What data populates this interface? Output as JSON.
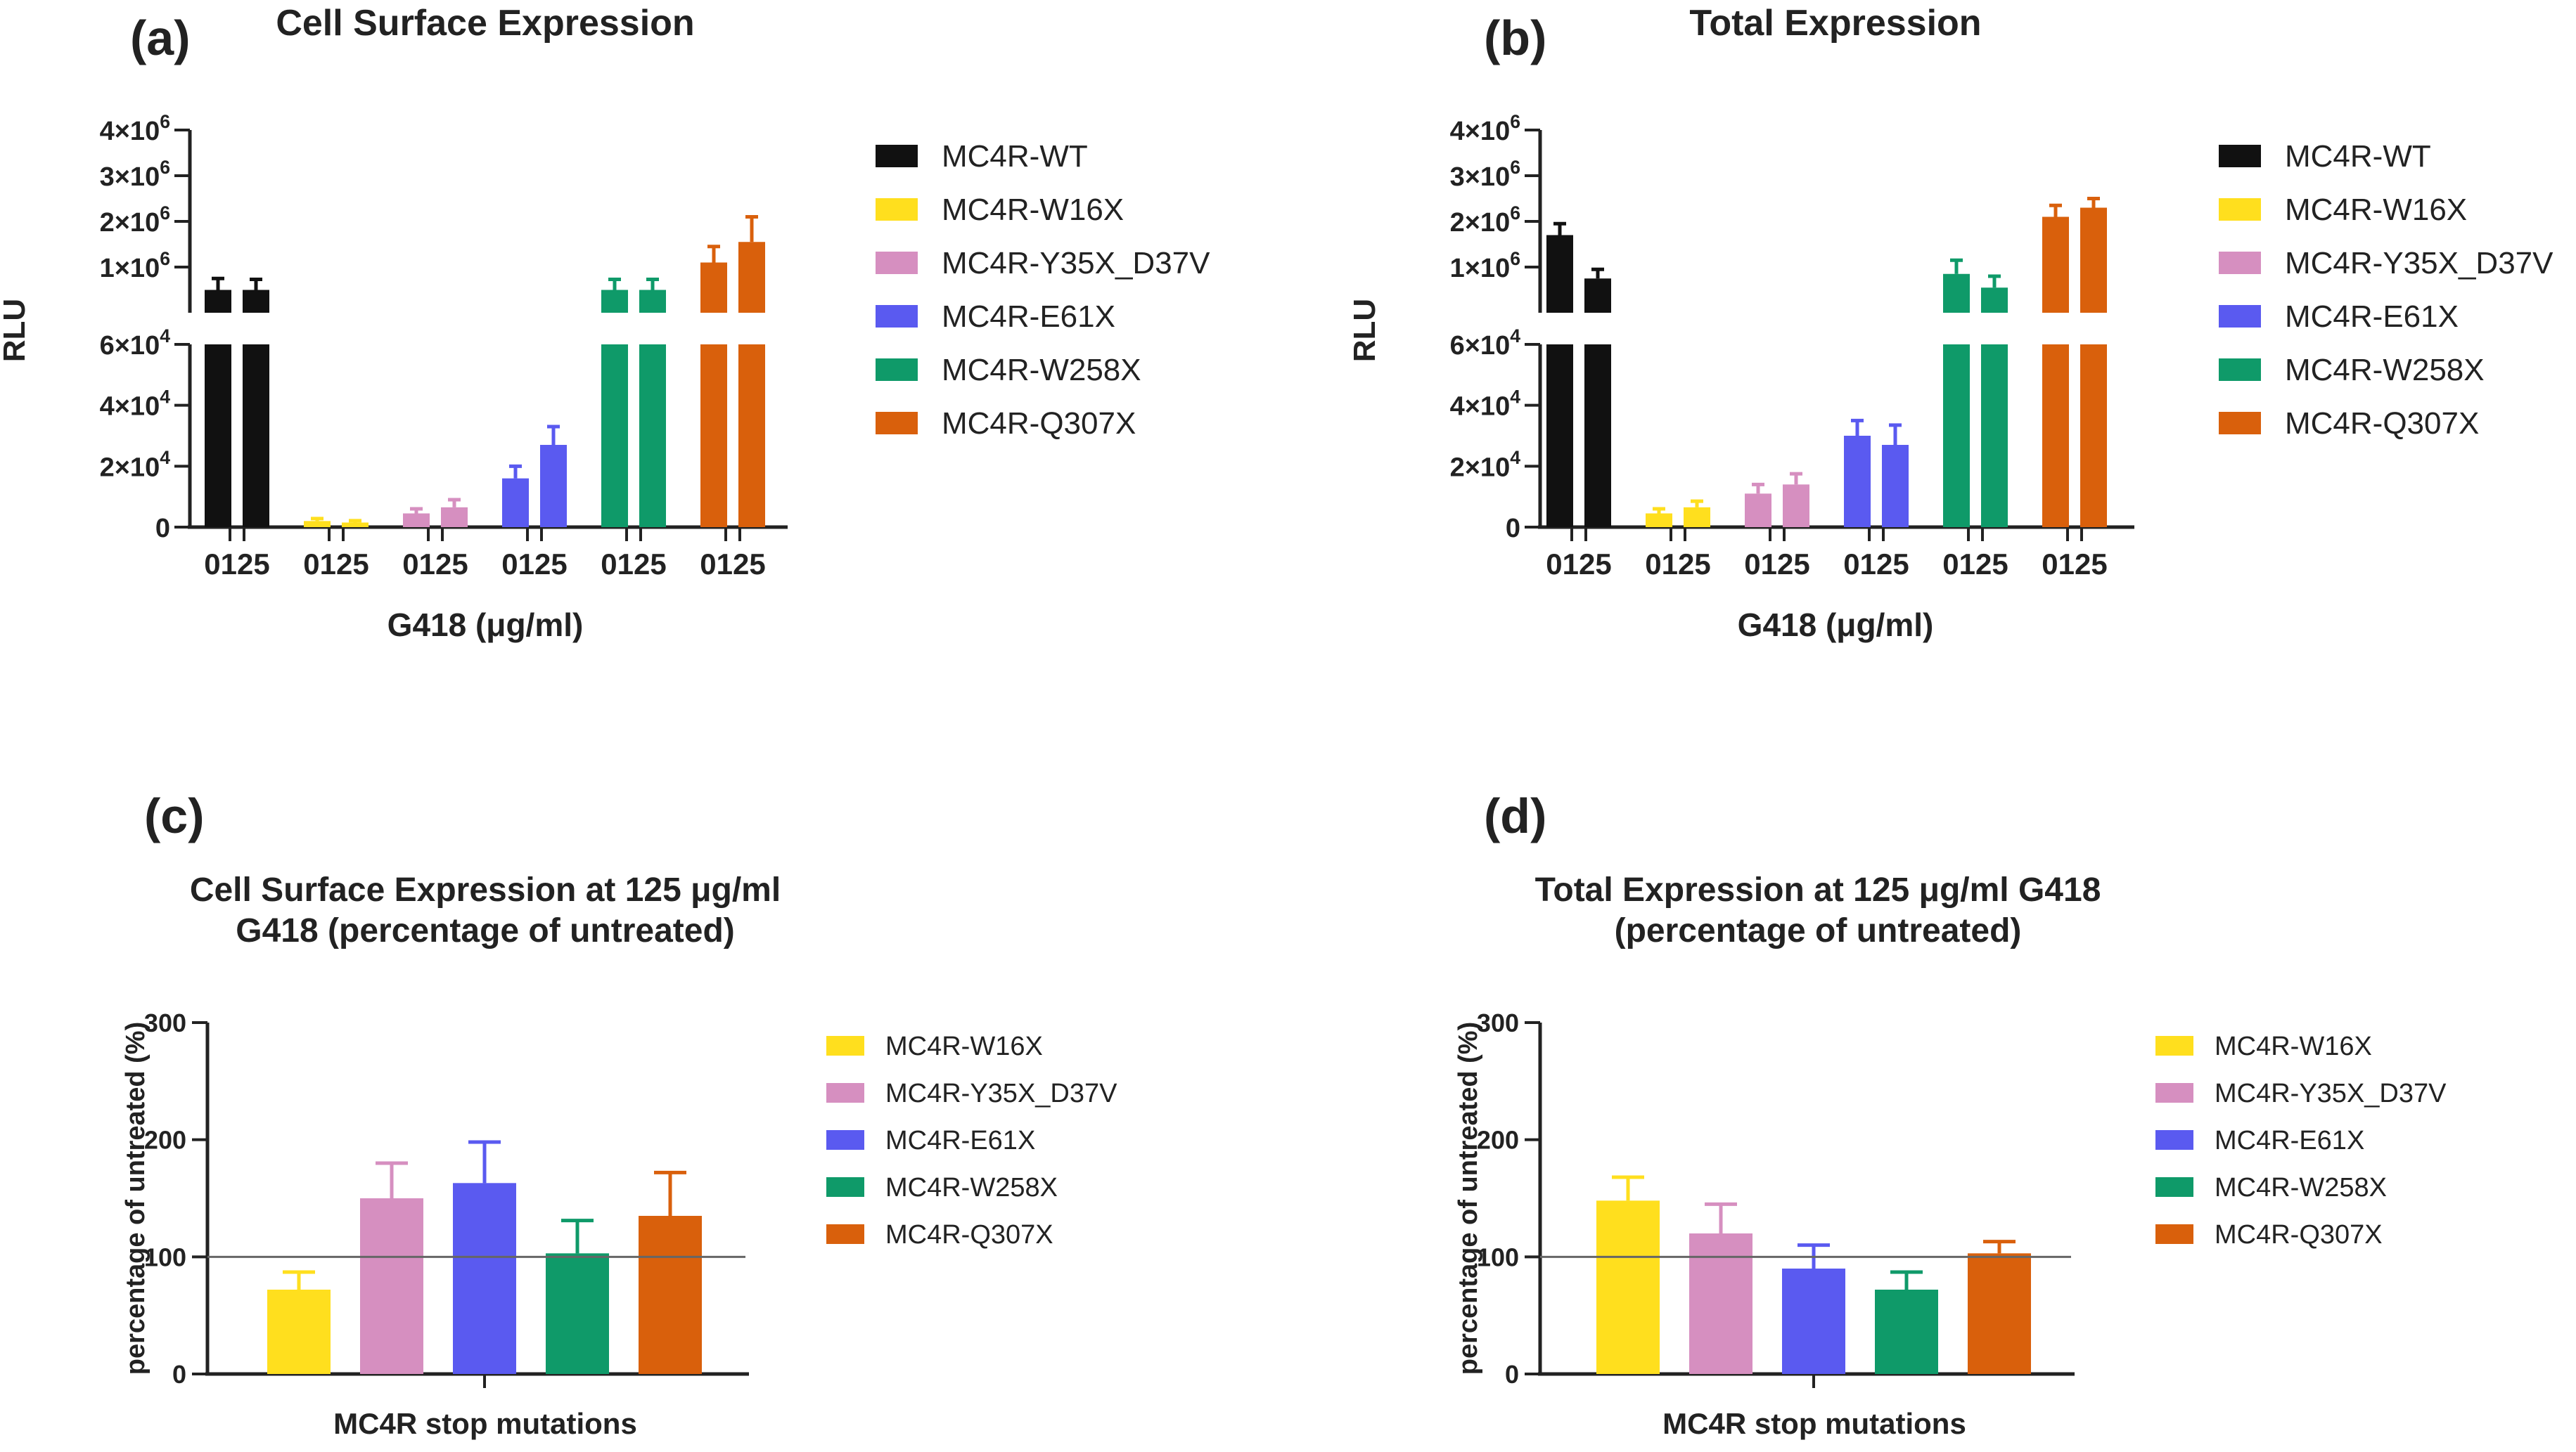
{
  "colors": {
    "MC4R-WT": "#111111",
    "MC4R-W16X": "#ffdf1e",
    "MC4R-Y35X_D37V": "#d68fc0",
    "MC4R-E61X": "#5a5af0",
    "MC4R-W258X": "#0f9a69",
    "MC4R-Q307X": "#d9600c",
    "axis": "#222222",
    "refline": "#666666"
  },
  "chart_data": [
    {
      "id": "a",
      "panel_label": "(a)",
      "type": "bar",
      "title": "Cell Surface Expression",
      "ylabel": "RLU",
      "xlabel": "G418 (μg/ml)",
      "treatments": [
        "0",
        "125"
      ],
      "tick_label": "0125",
      "lower_ylim": [
        0,
        60000
      ],
      "upper_ylim": [
        0,
        4000000
      ],
      "lower_ticks": [
        {
          "v": 0,
          "base": "0",
          "exp": ""
        },
        {
          "v": 20000,
          "base": "2×10",
          "exp": "4"
        },
        {
          "v": 40000,
          "base": "4×10",
          "exp": "4"
        },
        {
          "v": 60000,
          "base": "6×10",
          "exp": "4"
        }
      ],
      "upper_ticks": [
        {
          "v": 1000000,
          "base": "1×10",
          "exp": "6"
        },
        {
          "v": 2000000,
          "base": "2×10",
          "exp": "6"
        },
        {
          "v": 3000000,
          "base": "3×10",
          "exp": "6"
        },
        {
          "v": 4000000,
          "base": "4×10",
          "exp": "6"
        }
      ],
      "legend": [
        "MC4R-WT",
        "MC4R-W16X",
        "MC4R-Y35X_D37V",
        "MC4R-E61X",
        "MC4R-W258X",
        "MC4R-Q307X"
      ],
      "series": [
        {
          "name": "MC4R-WT",
          "values": [
            500000,
            500000
          ],
          "errors": [
            250000,
            230000
          ]
        },
        {
          "name": "MC4R-W16X",
          "values": [
            2000,
            1500
          ],
          "errors": [
            800,
            600
          ]
        },
        {
          "name": "MC4R-Y35X_D37V",
          "values": [
            4500,
            6500
          ],
          "errors": [
            1500,
            2500
          ]
        },
        {
          "name": "MC4R-E61X",
          "values": [
            16000,
            27000
          ],
          "errors": [
            4000,
            6000
          ]
        },
        {
          "name": "MC4R-W258X",
          "values": [
            500000,
            500000
          ],
          "errors": [
            230000,
            230000
          ]
        },
        {
          "name": "MC4R-Q307X",
          "values": [
            1100000,
            1550000
          ],
          "errors": [
            350000,
            550000
          ]
        }
      ]
    },
    {
      "id": "b",
      "panel_label": "(b)",
      "type": "bar",
      "title": "Total Expression",
      "ylabel": "RLU",
      "xlabel": "G418 (μg/ml)",
      "treatments": [
        "0",
        "125"
      ],
      "tick_label": "0125",
      "lower_ylim": [
        0,
        60000
      ],
      "upper_ylim": [
        0,
        4000000
      ],
      "lower_ticks": [
        {
          "v": 0,
          "base": "0",
          "exp": ""
        },
        {
          "v": 20000,
          "base": "2×10",
          "exp": "4"
        },
        {
          "v": 40000,
          "base": "4×10",
          "exp": "4"
        },
        {
          "v": 60000,
          "base": "6×10",
          "exp": "4"
        }
      ],
      "upper_ticks": [
        {
          "v": 1000000,
          "base": "1×10",
          "exp": "6"
        },
        {
          "v": 2000000,
          "base": "2×10",
          "exp": "6"
        },
        {
          "v": 3000000,
          "base": "3×10",
          "exp": "6"
        },
        {
          "v": 4000000,
          "base": "4×10",
          "exp": "6"
        }
      ],
      "legend": [
        "MC4R-WT",
        "MC4R-W16X",
        "MC4R-Y35X_D37V",
        "MC4R-E61X",
        "MC4R-W258X",
        "MC4R-Q307X"
      ],
      "series": [
        {
          "name": "MC4R-WT",
          "values": [
            1700000,
            750000
          ],
          "errors": [
            250000,
            200000
          ]
        },
        {
          "name": "MC4R-W16X",
          "values": [
            4500,
            6500
          ],
          "errors": [
            1500,
            2000
          ]
        },
        {
          "name": "MC4R-Y35X_D37V",
          "values": [
            11000,
            14000
          ],
          "errors": [
            3000,
            3500
          ]
        },
        {
          "name": "MC4R-E61X",
          "values": [
            30000,
            27000
          ],
          "errors": [
            5000,
            6500
          ]
        },
        {
          "name": "MC4R-W258X",
          "values": [
            850000,
            550000
          ],
          "errors": [
            300000,
            250000
          ]
        },
        {
          "name": "MC4R-Q307X",
          "values": [
            2100000,
            2300000
          ],
          "errors": [
            250000,
            200000
          ]
        }
      ]
    },
    {
      "id": "c",
      "panel_label": "(c)",
      "type": "bar",
      "title_lines": [
        "Cell Surface Expression at 125 μg/ml",
        "G418 (percentage of untreated)"
      ],
      "ylabel": "percentage of untreated (%)",
      "xlabel": "MC4R stop mutations",
      "ylim": [
        0,
        300
      ],
      "yticks": [
        "0",
        "100",
        "200",
        "300"
      ],
      "reference_line": 100,
      "categories": [
        "MC4R-W16X",
        "MC4R-Y35X_D37V",
        "MC4R-E61X",
        "MC4R-W258X",
        "MC4R-Q307X"
      ],
      "values": [
        72,
        150,
        163,
        103,
        135
      ],
      "errors": [
        15,
        30,
        35,
        28,
        37
      ],
      "legend": [
        "MC4R-W16X",
        "MC4R-Y35X_D37V",
        "MC4R-E61X",
        "MC4R-W258X",
        "MC4R-Q307X"
      ]
    },
    {
      "id": "d",
      "panel_label": "(d)",
      "type": "bar",
      "title_lines": [
        "Total Expression at 125 μg/ml G418",
        "(percentage of untreated)"
      ],
      "ylabel": "percentage of untreated (%)",
      "xlabel": "MC4R stop mutations",
      "ylim": [
        0,
        300
      ],
      "yticks": [
        "0",
        "100",
        "200",
        "300"
      ],
      "reference_line": 100,
      "categories": [
        "MC4R-W16X",
        "MC4R-Y35X_D37V",
        "MC4R-E61X",
        "MC4R-W258X",
        "MC4R-Q307X"
      ],
      "values": [
        148,
        120,
        90,
        72,
        103
      ],
      "errors": [
        20,
        25,
        20,
        15,
        10
      ],
      "legend": [
        "MC4R-W16X",
        "MC4R-Y35X_D37V",
        "MC4R-E61X",
        "MC4R-W258X",
        "MC4R-Q307X"
      ]
    }
  ]
}
